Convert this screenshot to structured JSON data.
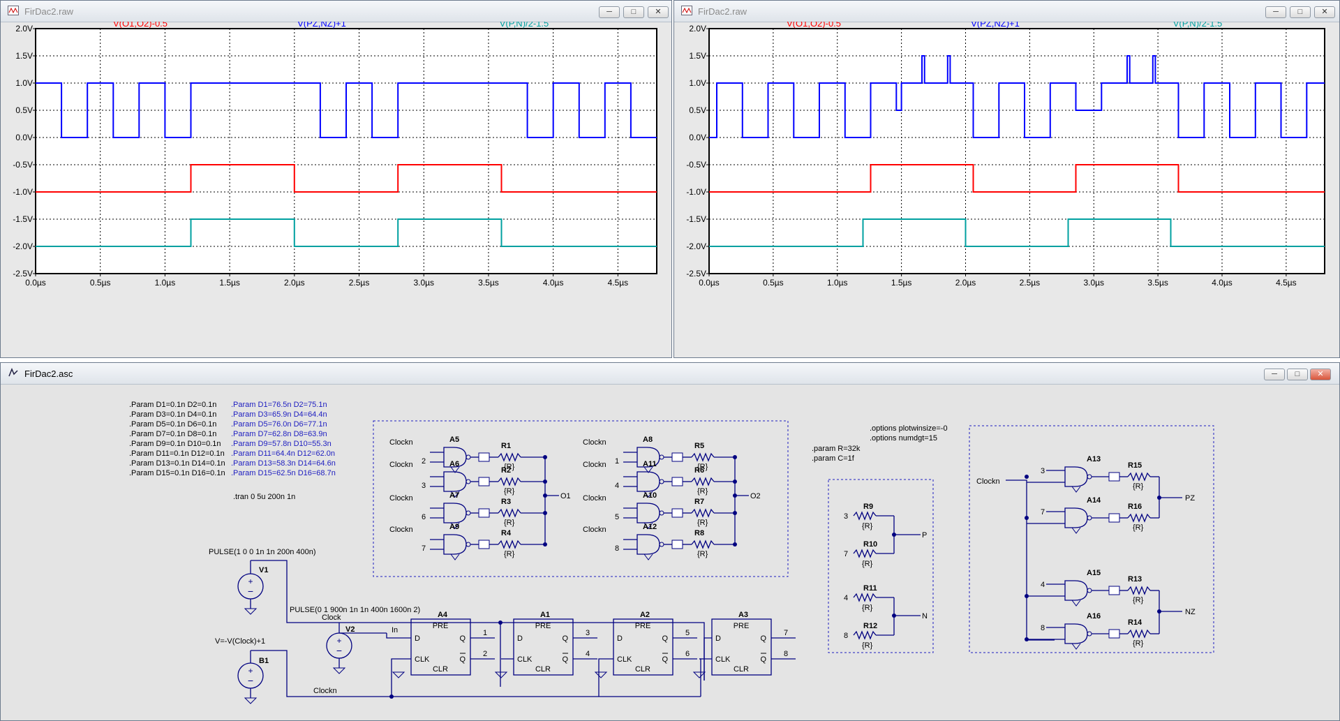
{
  "windows": {
    "raw1": {
      "title": "FirDac2.raw"
    },
    "raw2": {
      "title": "FirDac2.raw"
    },
    "asc": {
      "title": "FirDac2.asc"
    }
  },
  "window_buttons": {
    "minimize": "─",
    "maximize": "□",
    "close": "✕"
  },
  "plot": {
    "traces": [
      {
        "label": "V(O1,O2)-0.5",
        "color": "#ff0000"
      },
      {
        "label": "V(PZ,NZ)+1",
        "color": "#0000ff"
      },
      {
        "label": "V(P,N)/2-1.5",
        "color": "#00a0a0"
      }
    ],
    "y_ticks": [
      "2.0V",
      "1.5V",
      "1.0V",
      "0.5V",
      "0.0V",
      "-0.5V",
      "-1.0V",
      "-1.5V",
      "-2.0V",
      "-2.5V"
    ],
    "x_ticks": [
      "0.0µs",
      "0.5µs",
      "1.0µs",
      "1.5µs",
      "2.0µs",
      "2.5µs",
      "3.0µs",
      "3.5µs",
      "4.0µs",
      "4.5µs"
    ]
  },
  "chart_data": [
    {
      "type": "line",
      "xlabel": "",
      "ylabel": "",
      "xlim": [
        0,
        4.8
      ],
      "ylim": [
        -2.5,
        2.0
      ],
      "series": [
        {
          "name": "V(PZ,NZ)+1",
          "x": [
            0,
            0.2,
            0.2,
            0.4,
            0.4,
            0.6,
            0.6,
            0.8,
            0.8,
            1.0,
            1.0,
            1.2,
            1.2,
            2.2,
            2.2,
            2.4,
            2.4,
            2.6,
            2.6,
            2.8,
            2.8,
            3.8,
            3.8,
            4.0,
            4.0,
            4.2,
            4.2,
            4.4,
            4.4,
            4.6,
            4.6,
            4.8
          ],
          "y": [
            1,
            1,
            0,
            0,
            1,
            1,
            0,
            0,
            1,
            1,
            0,
            0,
            1,
            1,
            0,
            0,
            1,
            1,
            0,
            0,
            1,
            1,
            0,
            0,
            1,
            1,
            0,
            0,
            1,
            1,
            0,
            0
          ]
        },
        {
          "name": "V(O1,O2)-0.5",
          "x": [
            0,
            1.2,
            1.2,
            2.0,
            2.0,
            2.8,
            2.8,
            3.6,
            3.6,
            4.8
          ],
          "y": [
            -1,
            -1,
            -0.5,
            -0.5,
            -1,
            -1,
            -0.5,
            -0.5,
            -1,
            -1
          ]
        },
        {
          "name": "V(P,N)/2-1.5",
          "x": [
            0,
            1.2,
            1.2,
            2.0,
            2.0,
            2.8,
            2.8,
            3.6,
            3.6,
            4.8
          ],
          "y": [
            -2,
            -2,
            -1.5,
            -1.5,
            -2,
            -2,
            -1.5,
            -1.5,
            -2,
            -2
          ]
        }
      ]
    },
    {
      "type": "line",
      "xlabel": "",
      "ylabel": "",
      "xlim": [
        0,
        4.8
      ],
      "ylim": [
        -2.5,
        2.0
      ],
      "series": [
        {
          "name": "V(PZ,NZ)+1",
          "x": [
            0,
            0.06,
            0.06,
            0.26,
            0.26,
            0.46,
            0.46,
            0.66,
            0.66,
            0.86,
            0.86,
            1.06,
            1.06,
            1.26,
            1.26,
            1.46,
            1.46,
            1.5,
            1.5,
            1.66,
            1.66,
            1.68,
            1.68,
            1.86,
            1.86,
            1.88,
            1.88,
            2.06,
            2.06,
            2.26,
            2.26,
            2.46,
            2.46,
            2.66,
            2.66,
            2.86,
            2.86,
            3.06,
            3.06,
            3.26,
            3.26,
            3.28,
            3.28,
            3.46,
            3.46,
            3.48,
            3.48,
            3.66,
            3.66,
            3.86,
            3.86,
            4.06,
            4.06,
            4.26,
            4.26,
            4.46,
            4.46,
            4.66,
            4.66,
            4.8
          ],
          "y": [
            0,
            0,
            1,
            1,
            0,
            0,
            1,
            1,
            0,
            0,
            1,
            1,
            0,
            0,
            1,
            1,
            0.5,
            0.5,
            1,
            1,
            1.5,
            1.5,
            1,
            1,
            1.5,
            1.5,
            1,
            1,
            0,
            0,
            1,
            1,
            0,
            0,
            1,
            1,
            0.5,
            0.5,
            1,
            1,
            1.5,
            1.5,
            1,
            1,
            1.5,
            1.5,
            1,
            1,
            0,
            0,
            1,
            1,
            0,
            0,
            1,
            1,
            0,
            0,
            1,
            1
          ]
        },
        {
          "name": "V(O1,O2)-0.5",
          "x": [
            0,
            1.26,
            1.26,
            2.06,
            2.06,
            2.86,
            2.86,
            3.66,
            3.66,
            4.8
          ],
          "y": [
            -1,
            -1,
            -0.5,
            -0.5,
            -1,
            -1,
            -0.5,
            -0.5,
            -1,
            -1
          ]
        },
        {
          "name": "V(P,N)/2-1.5",
          "x": [
            0,
            1.2,
            1.2,
            2.0,
            2.0,
            2.8,
            2.8,
            3.6,
            3.6,
            4.8
          ],
          "y": [
            -2,
            -2,
            -1.5,
            -1.5,
            -2,
            -2,
            -1.5,
            -1.5,
            -2,
            -2
          ]
        }
      ]
    }
  ],
  "schematic": {
    "param_lines_left": [
      ".Param D1=0.1n D2=0.1n",
      ".Param D3=0.1n D4=0.1n",
      ".Param D5=0.1n D6=0.1n",
      ".Param D7=0.1n D8=0.1n",
      ".Param D9=0.1n D10=0.1n",
      ".Param D11=0.1n D12=0.1n",
      ".Param D13=0.1n D14=0.1n",
      ".Param D15=0.1n D16=0.1n"
    ],
    "param_lines_right": [
      ".Param D1=76.5n D2=75.1n",
      ".Param D3=65.9n D4=64.4n",
      ".Param D5=76.0n D6=77.1n",
      ".Param D7=62.8n D8=63.9n",
      ".Param D9=57.8n D10=55.3n",
      ".Param D11=64.4n D12=62.0n",
      ".Param D13=58.3n D14=64.6n",
      ".Param D15=62.5n D16=68.7n"
    ],
    "tran": ".tran 0 5u 200n 1n",
    "options": [
      ".options plotwinsize=-0",
      ".options numdgt=15"
    ],
    "params_rc": [
      ".param R=32k",
      ".param C=1f"
    ],
    "pulse1": "PULSE(1 0 0 1n 1n 200n 400n)",
    "pulse2": "PULSE(0 1 900n 1n 1n 400n 1600n 2)",
    "b1_expr": "V=-V(Clock)+1",
    "labels": {
      "v1": "V1",
      "v2": "V2",
      "b1": "B1",
      "clock": "Clock",
      "clockn": "Clockn",
      "in": "In",
      "o1": "O1",
      "o2": "O2",
      "p": "P",
      "n": "N",
      "pz": "PZ",
      "nz": "NZ",
      "r_val": "{R}",
      "pre": "PRE",
      "clr": "CLR",
      "d": "D",
      "q": "Q",
      "qbar": "Q",
      "clk": "CLK"
    },
    "gates_o1": [
      {
        "name": "A5",
        "pin": "2",
        "res": "R1"
      },
      {
        "name": "A6",
        "pin": "3",
        "res": "R2"
      },
      {
        "name": "A7",
        "pin": "6",
        "res": "R3"
      },
      {
        "name": "A9",
        "pin": "7",
        "res": "R4"
      }
    ],
    "gates_o2": [
      {
        "name": "A8",
        "pin": "1",
        "res": "R5"
      },
      {
        "name": "A11",
        "pin": "4",
        "res": "R6"
      },
      {
        "name": "A10",
        "pin": "5",
        "res": "R7"
      },
      {
        "name": "A12",
        "pin": "8",
        "res": "R8"
      }
    ],
    "gates_z": [
      {
        "name": "A13",
        "pin": "3",
        "res": "R15"
      },
      {
        "name": "A14",
        "pin": "7",
        "res": "R16"
      },
      {
        "name": "A15",
        "pin": "4",
        "res": "R13"
      },
      {
        "name": "A16",
        "pin": "8",
        "res": "R14"
      }
    ],
    "resistors_pn": [
      {
        "name": "R9",
        "pin": "3"
      },
      {
        "name": "R10",
        "pin": "7"
      },
      {
        "name": "R11",
        "pin": "4"
      },
      {
        "name": "R12",
        "pin": "8"
      }
    ],
    "flipflops": [
      {
        "name": "A4",
        "q_net": "1",
        "qb_net": "2"
      },
      {
        "name": "A1",
        "q_net": "3",
        "qb_net": "4"
      },
      {
        "name": "A2",
        "q_net": "5",
        "qb_net": "6"
      },
      {
        "name": "A3",
        "q_net": "7",
        "qb_net": "8"
      }
    ]
  }
}
